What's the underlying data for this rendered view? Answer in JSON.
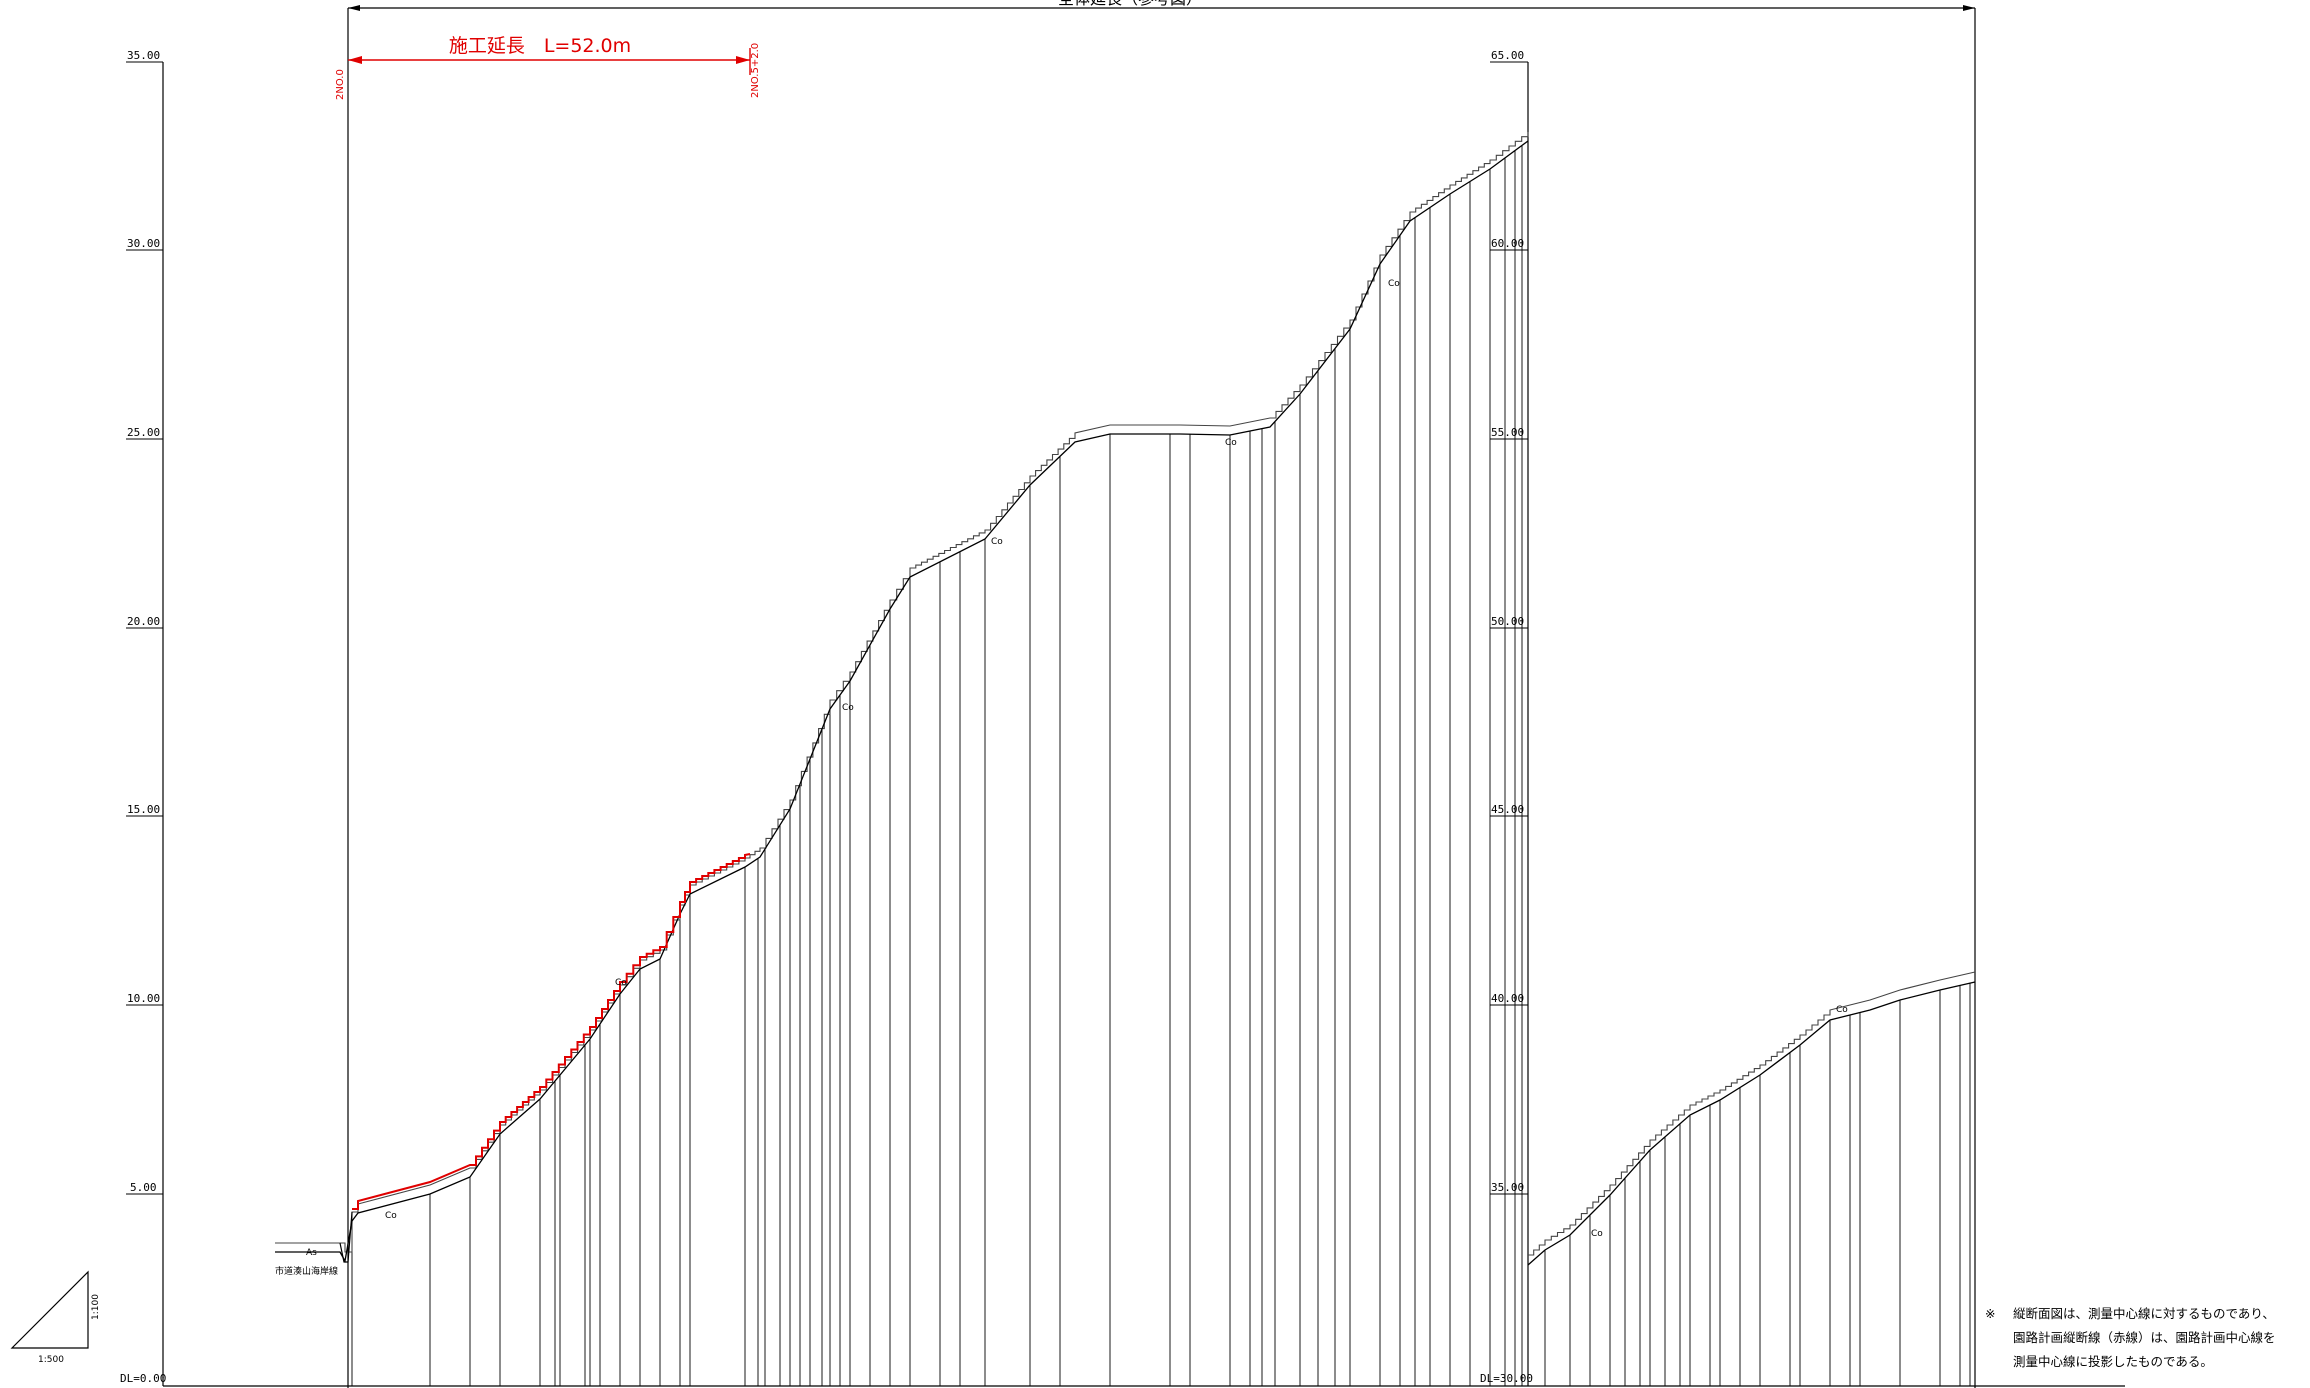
{
  "title_partial": "全体延長（参考図）",
  "construction": {
    "label": "施工延長　L=52.0m",
    "start_station": "2NO.0",
    "end_station": "2NO.5+2.0"
  },
  "axis_left": {
    "ticks": [
      "35.00",
      "30.00",
      "25.00",
      "20.00",
      "15.00",
      "10.00",
      "5.00"
    ],
    "datum": "DL=0.00"
  },
  "axis_right": {
    "ticks": [
      "65.00",
      "60.00",
      "55.00",
      "50.00",
      "45.00",
      "40.00",
      "35.00"
    ],
    "datum": "DL=30.00"
  },
  "material_labels": {
    "asphalt": "As",
    "concrete": "Co"
  },
  "road_name": "市道湊山海岸線",
  "scale": {
    "vertical": "1:100",
    "horizontal": "1:500"
  },
  "note": {
    "mark": "※",
    "lines": [
      "縦断面図は、測量中心線に対するものであり、",
      "園路計画縦断線（赤線）は、園路計画中心線を",
      "測量中心線に投影したものである。"
    ]
  },
  "colors": {
    "plan_line": "#e00000",
    "ground_line": "#000000"
  }
}
